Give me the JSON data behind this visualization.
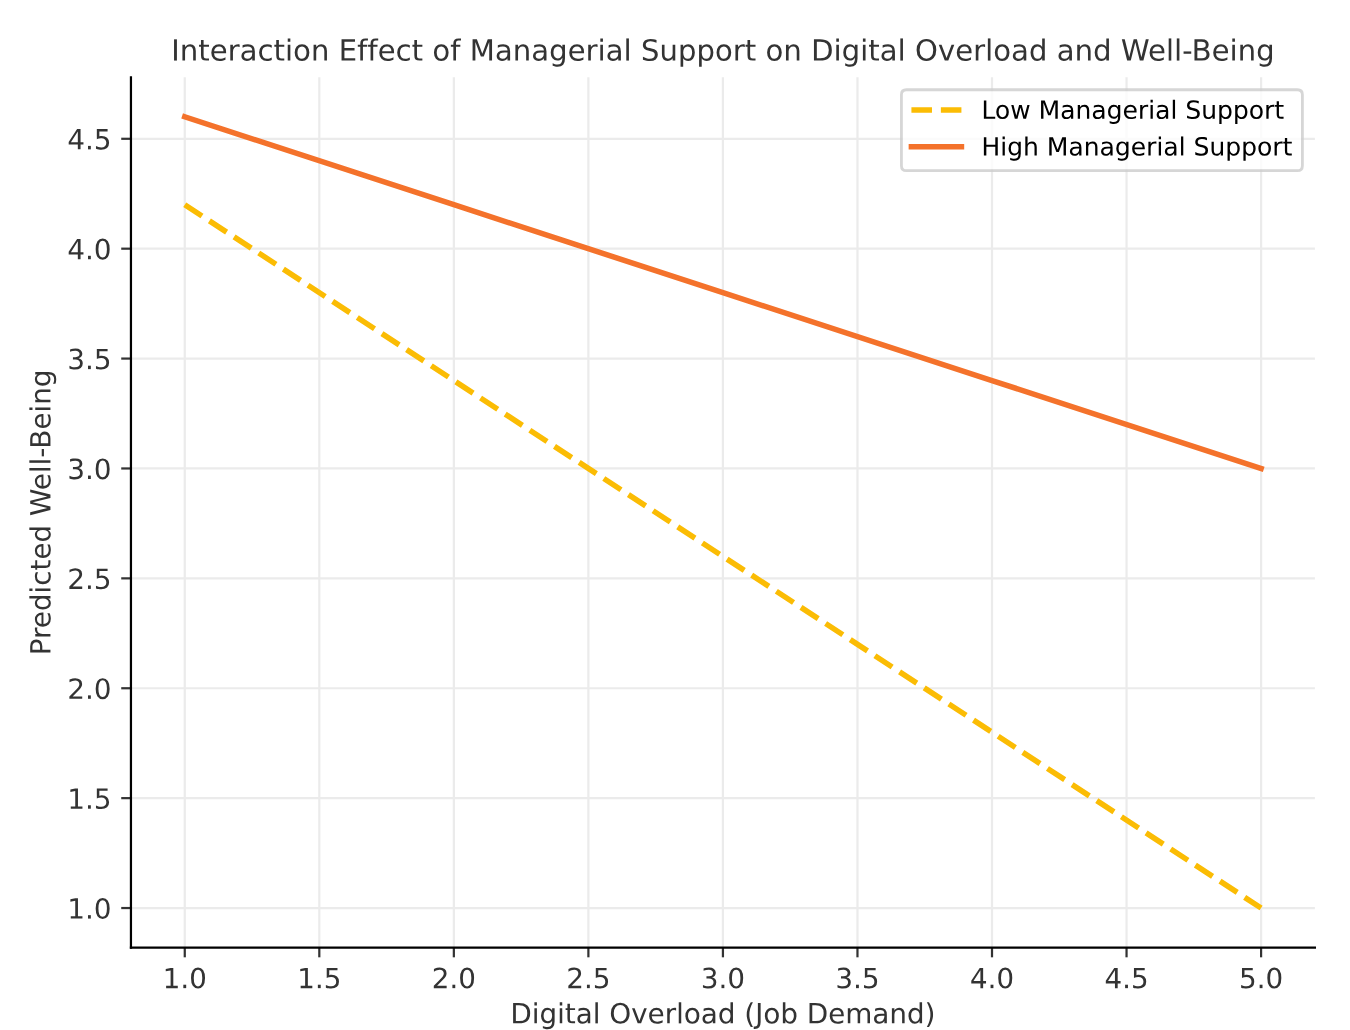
{
  "chart_data": {
    "type": "line",
    "title": "Interaction Effect of Managerial Support on Digital Overload and Well-Being",
    "xlabel": "Digital Overload (Job Demand)",
    "ylabel": "Predicted Well-Being",
    "x": [
      1,
      2,
      3,
      4,
      5
    ],
    "series": [
      {
        "name": "Low Managerial Support",
        "color": "#fbbc04",
        "values": [
          4.2,
          3.4,
          2.6,
          1.8,
          1.0
        ],
        "line_style": "dashed"
      },
      {
        "name": "High Managerial Support",
        "color": "#f4722b",
        "values": [
          4.6,
          4.2,
          3.8,
          3.4,
          3.0
        ],
        "line_style": "solid"
      }
    ],
    "xlim": [
      0.8,
      5.2
    ],
    "xticks": [
      {
        "value": 1,
        "label": "1.0"
      },
      1.5,
      {
        "value": 2,
        "label": "2.0"
      },
      2.5,
      {
        "value": 3,
        "label": "3.0"
      },
      3.5,
      {
        "value": 4,
        "label": "4.0"
      },
      4.5,
      {
        "value": 5,
        "label": "5.0"
      }
    ],
    "ylim": [
      0.82,
      4.78
    ],
    "yticks": [
      {
        "value": 1,
        "label": "1.0"
      },
      1.5,
      {
        "value": 2,
        "label": "2.0"
      },
      2.5,
      {
        "value": 3,
        "label": "3.0"
      },
      3.5,
      {
        "value": 4,
        "label": "4.0"
      },
      4.5
    ],
    "grid": true,
    "legend": "top right"
  }
}
